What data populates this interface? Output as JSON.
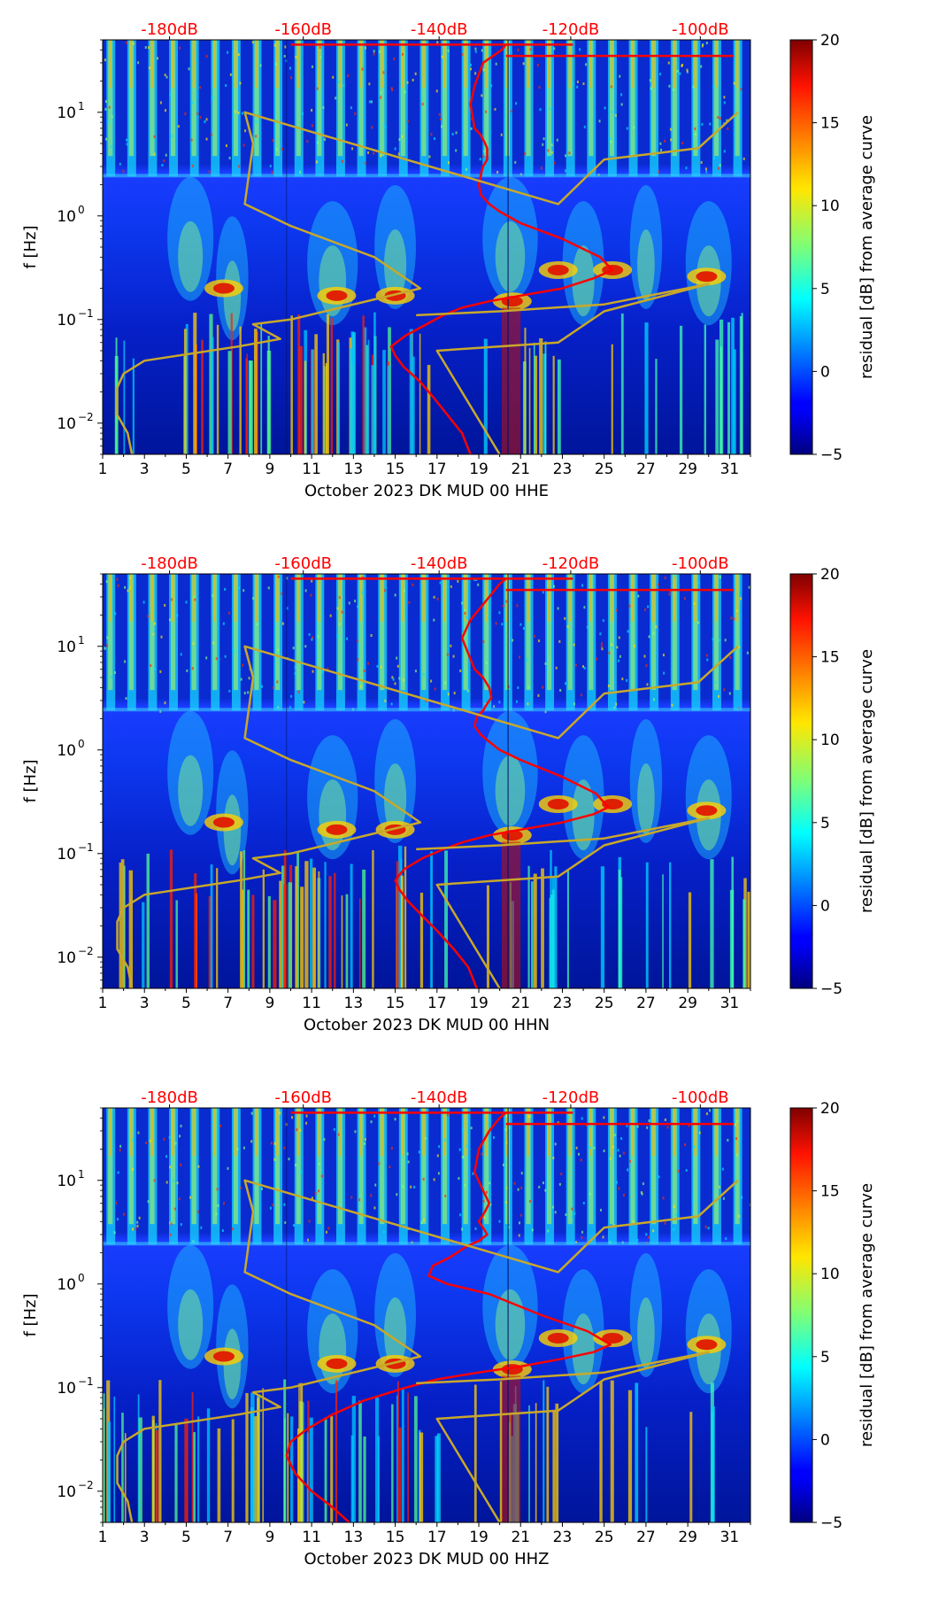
{
  "chart_data": [
    {
      "type": "heatmap",
      "xlabel": "October 2023 DK MUD 00 HHE",
      "ylabel": "f [Hz]",
      "x_ticks": [
        "1",
        "3",
        "5",
        "7",
        "9",
        "11",
        "13",
        "15",
        "17",
        "19",
        "21",
        "23",
        "25",
        "27",
        "29",
        "31"
      ],
      "y_ticks": [
        {
          "label": "10",
          "exp": "1"
        },
        {
          "label": "10",
          "exp": "0"
        },
        {
          "label": "10",
          "exp": "−1"
        },
        {
          "label": "10",
          "exp": "−2"
        }
      ],
      "top_ticks": [
        "-180dB",
        "-160dB",
        "-140dB",
        "-120dB",
        "-100dB"
      ],
      "colorbar": {
        "label": "residual [dB] from average curve",
        "ticks": [
          "20",
          "15",
          "10",
          "5",
          "0",
          "−5"
        ],
        "range": [
          -5,
          20
        ]
      },
      "xlim": [
        1,
        32
      ],
      "ylim_hz": [
        0.005,
        50
      ],
      "series": [
        {
          "color": "#ff0000",
          "x": [
            20.3,
            20.1,
            19.2,
            18.8,
            18.6,
            18.8,
            19.1,
            19.3,
            19.4,
            19.4,
            19.2,
            19.1,
            19.0,
            19.1,
            19.5,
            20.0,
            21.0,
            23.0,
            24.8,
            25.4,
            24.5,
            23.0,
            21.0,
            19.5,
            18.2,
            17.3,
            16.5,
            15.5,
            14.8,
            15.0,
            15.4,
            16.2,
            16.8,
            17.5,
            18.2,
            18.6
          ],
          "y": [
            45,
            40,
            30,
            18,
            12,
            7,
            6,
            5,
            4.5,
            3.5,
            3.0,
            2.5,
            2.0,
            1.6,
            1.3,
            1.1,
            0.85,
            0.6,
            0.4,
            0.3,
            0.25,
            0.2,
            0.17,
            0.15,
            0.13,
            0.11,
            0.09,
            0.07,
            0.055,
            0.045,
            0.035,
            0.025,
            0.018,
            0.012,
            0.008,
            0.005
          ]
        },
        {
          "color": "#c8a82a",
          "x": [
            2.4,
            2.2,
            1.7,
            1.7,
            2.0,
            3.0,
            7.5,
            9.5,
            8.2,
            10.0,
            16.2,
            14.0,
            10.0,
            7.8,
            8.2,
            7.8,
            22.8,
            25.0,
            29.5,
            31.4
          ],
          "y": [
            0.005,
            0.008,
            0.012,
            0.022,
            0.03,
            0.04,
            0.055,
            0.065,
            0.09,
            0.1,
            0.2,
            0.4,
            0.8,
            1.3,
            5,
            10,
            1.3,
            3.5,
            4.5,
            10
          ]
        },
        {
          "color": "#c8a82a",
          "x": [
            20.0,
            17.0,
            22.8,
            25.0,
            30.0,
            25.0,
            20.0,
            16.0
          ],
          "y": [
            0.005,
            0.05,
            0.06,
            0.12,
            0.22,
            0.14,
            0.12,
            0.11
          ]
        }
      ]
    },
    {
      "type": "heatmap",
      "xlabel": "October 2023 DK MUD 00 HHN",
      "ylabel": "f [Hz]",
      "x_ticks": [
        "1",
        "3",
        "5",
        "7",
        "9",
        "11",
        "13",
        "15",
        "17",
        "19",
        "21",
        "23",
        "25",
        "27",
        "29",
        "31"
      ],
      "y_ticks": [
        {
          "label": "10",
          "exp": "1"
        },
        {
          "label": "10",
          "exp": "0"
        },
        {
          "label": "10",
          "exp": "−1"
        },
        {
          "label": "10",
          "exp": "−2"
        }
      ],
      "top_ticks": [
        "-180dB",
        "-160dB",
        "-140dB",
        "-120dB",
        "-100dB"
      ],
      "colorbar": {
        "label": "residual [dB] from average curve",
        "ticks": [
          "20",
          "15",
          "10",
          "5",
          "0",
          "−5"
        ],
        "range": [
          -5,
          20
        ]
      },
      "xlim": [
        1,
        32
      ],
      "ylim_hz": [
        0.005,
        50
      ],
      "series": [
        {
          "color": "#ff0000",
          "x": [
            20.3,
            20.0,
            19.5,
            18.6,
            18.2,
            18.8,
            19.2,
            19.5,
            19.6,
            19.4,
            19.2,
            18.9,
            18.8,
            19.1,
            19.5,
            20.0,
            21.0,
            23.0,
            24.6,
            25.2,
            24.5,
            23.0,
            21.0,
            19.5,
            18.3,
            17.3,
            16.3,
            15.4,
            15.0,
            15.2,
            15.6,
            16.3,
            17.0,
            17.8,
            18.5,
            18.9
          ],
          "y": [
            45,
            40,
            30,
            18,
            12,
            6,
            5,
            4,
            3.2,
            2.8,
            2.4,
            2.1,
            1.7,
            1.4,
            1.2,
            1.0,
            0.8,
            0.55,
            0.38,
            0.28,
            0.24,
            0.2,
            0.17,
            0.15,
            0.13,
            0.11,
            0.09,
            0.07,
            0.055,
            0.045,
            0.035,
            0.025,
            0.018,
            0.012,
            0.008,
            0.005
          ]
        },
        {
          "color": "#c8a82a",
          "x": [
            2.4,
            2.2,
            1.7,
            1.7,
            2.0,
            3.0,
            7.5,
            9.5,
            8.2,
            10.0,
            16.2,
            14.0,
            10.0,
            7.8,
            8.2,
            7.8,
            22.8,
            25.0,
            29.5,
            31.4
          ],
          "y": [
            0.005,
            0.008,
            0.012,
            0.022,
            0.03,
            0.04,
            0.055,
            0.065,
            0.09,
            0.1,
            0.2,
            0.4,
            0.8,
            1.3,
            5,
            10,
            1.3,
            3.5,
            4.5,
            10
          ]
        },
        {
          "color": "#c8a82a",
          "x": [
            20.0,
            17.0,
            22.8,
            25.0,
            30.0,
            25.0,
            20.0,
            16.0
          ],
          "y": [
            0.005,
            0.05,
            0.06,
            0.12,
            0.22,
            0.14,
            0.12,
            0.11
          ]
        }
      ]
    },
    {
      "type": "heatmap",
      "xlabel": "October 2023 DK MUD 00 HHZ",
      "ylabel": "f [Hz]",
      "x_ticks": [
        "1",
        "3",
        "5",
        "7",
        "9",
        "11",
        "13",
        "15",
        "17",
        "19",
        "21",
        "23",
        "25",
        "27",
        "29",
        "31"
      ],
      "y_ticks": [
        {
          "label": "10",
          "exp": "1"
        },
        {
          "label": "10",
          "exp": "0"
        },
        {
          "label": "10",
          "exp": "−1"
        },
        {
          "label": "10",
          "exp": "−2"
        }
      ],
      "top_ticks": [
        "-180dB",
        "-160dB",
        "-140dB",
        "-120dB",
        "-100dB"
      ],
      "colorbar": {
        "label": "residual [dB] from average curve",
        "ticks": [
          "20",
          "15",
          "10",
          "5",
          "0",
          "−5"
        ],
        "range": [
          -5,
          20
        ]
      },
      "xlim": [
        1,
        32
      ],
      "ylim_hz": [
        0.005,
        50
      ],
      "series": [
        {
          "color": "#ff0000",
          "x": [
            20.3,
            20.0,
            19.5,
            19.0,
            18.8,
            19.2,
            19.5,
            19.3,
            19.0,
            19.2,
            19.4,
            19.0,
            18.4,
            17.6,
            16.8,
            16.6,
            17.5,
            19.5,
            22.0,
            24.2,
            25.3,
            24.5,
            23.0,
            21.0,
            19.0,
            17.0,
            15.5,
            13.5,
            12.0,
            10.8,
            10.0,
            9.8,
            10.2,
            11.0,
            12.0,
            12.8
          ],
          "y": [
            45,
            40,
            30,
            20,
            12,
            8,
            6,
            5,
            4,
            3.5,
            3.0,
            2.6,
            2.3,
            1.8,
            1.5,
            1.2,
            1.0,
            0.8,
            0.5,
            0.35,
            0.26,
            0.22,
            0.19,
            0.16,
            0.14,
            0.12,
            0.1,
            0.075,
            0.055,
            0.04,
            0.03,
            0.022,
            0.015,
            0.01,
            0.007,
            0.005
          ]
        },
        {
          "color": "#c8a82a",
          "x": [
            2.4,
            2.2,
            1.7,
            1.7,
            2.0,
            3.0,
            7.5,
            9.5,
            8.2,
            10.0,
            16.2,
            14.0,
            10.0,
            7.8,
            8.2,
            7.8,
            22.8,
            25.0,
            29.5,
            31.4
          ],
          "y": [
            0.005,
            0.008,
            0.012,
            0.022,
            0.03,
            0.04,
            0.055,
            0.065,
            0.09,
            0.1,
            0.2,
            0.4,
            0.8,
            1.3,
            5,
            10,
            1.3,
            3.5,
            4.5,
            10
          ]
        },
        {
          "color": "#c8a82a",
          "x": [
            20.0,
            17.0,
            22.8,
            25.0,
            30.0,
            25.0,
            20.0,
            16.0
          ],
          "y": [
            0.005,
            0.05,
            0.06,
            0.12,
            0.22,
            0.14,
            0.12,
            0.11
          ]
        }
      ]
    }
  ]
}
